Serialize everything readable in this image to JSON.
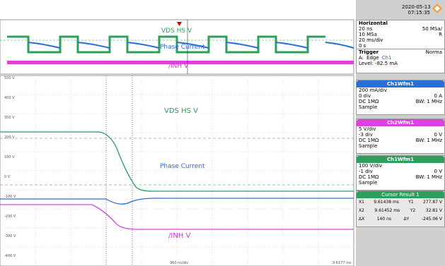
{
  "header": {
    "date": "2020-05-13",
    "time": "07:15:35"
  },
  "horizontal": {
    "title": "Horizontal",
    "rows": [
      [
        "20 ns",
        "50 MSa/"
      ],
      [
        "10 MSa",
        "R"
      ],
      [
        "20 ms/div",
        ""
      ],
      [
        "0 s",
        ""
      ]
    ]
  },
  "trigger": {
    "title": "Trigger",
    "mode": "Norma",
    "source": "A:",
    "edge": "Edge",
    "channel": "Ch1",
    "level": "Level: -82.5 mA"
  },
  "channels": [
    {
      "title": "Ch1Wfm1",
      "rows": [
        [
          "200 mA/div",
          ""
        ],
        [
          "0 div",
          "0 A"
        ],
        [
          "DC 1MΩ",
          "BW: 1 MHz"
        ],
        [
          "Sample",
          ""
        ]
      ]
    },
    {
      "title": "Ch2Wfm1",
      "rows": [
        [
          "5 V/div",
          ""
        ],
        [
          "-3 div",
          "0 V"
        ],
        [
          "DC 1MΩ",
          "BW: 1 MHz"
        ],
        [
          "Sample",
          ""
        ]
      ]
    },
    {
      "title": "Ch1Wfm1",
      "rows": [
        [
          "100 V/div",
          ""
        ],
        [
          "-1 div",
          "0 V"
        ],
        [
          "DC 1MΩ",
          "BW: 1 MHz"
        ],
        [
          "Sample",
          ""
        ]
      ]
    }
  ],
  "cursor": {
    "title": "Cursor Result 1",
    "rows": [
      [
        "X1",
        "9.61438 ms",
        "Y1",
        "277.87 V"
      ],
      [
        "X2",
        "9.61452 ms",
        "Y2",
        "32.81 V"
      ],
      [
        "ΔX",
        "140 ns",
        "ΔY",
        "-245.06 V"
      ]
    ]
  },
  "plot": {
    "vds": "VDS HS V",
    "phase": "Phase Current",
    "inh": "/INH V",
    "timebase": "960 ns/div",
    "position": "9.6177 ms",
    "yticks": [
      "500 V",
      "400 V",
      "300 V",
      "200 V",
      "100 V",
      "0 V",
      "-100 V",
      "-200 V",
      "-300 V",
      "-400 V"
    ]
  }
}
